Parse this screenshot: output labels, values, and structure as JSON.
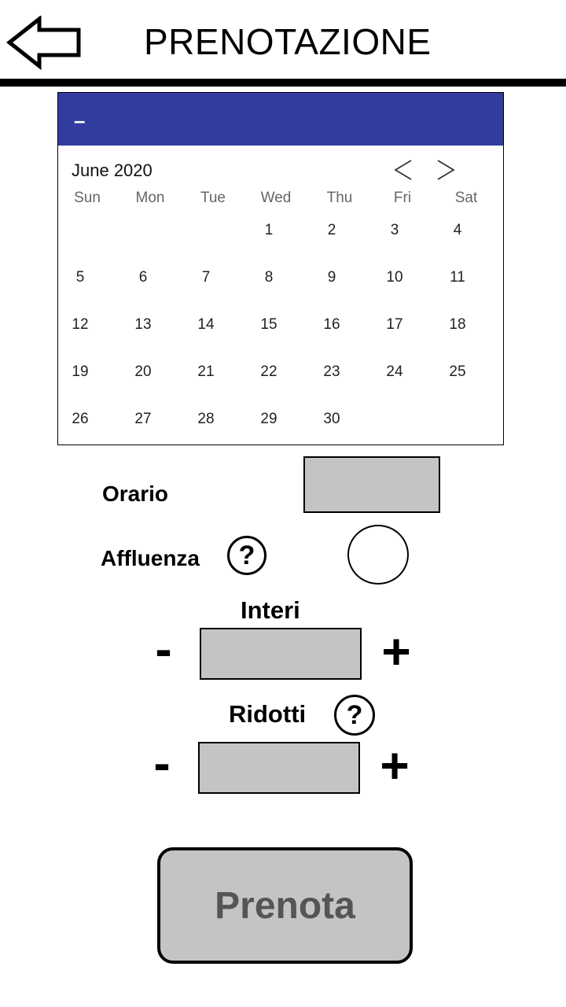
{
  "header": {
    "title": "PRENOTAZIONE",
    "back_icon": "back-arrow-icon"
  },
  "calendar": {
    "header_text": "–",
    "month_label": "June 2020",
    "accent_color": "#323c9f",
    "weekdays": [
      "Sun",
      "Mon",
      "Tue",
      "Wed",
      "Thu",
      "Fri",
      "Sat"
    ],
    "days": [
      "1",
      "2",
      "3",
      "4",
      "5",
      "6",
      "7",
      "8",
      "9",
      "10",
      "11",
      "12",
      "13",
      "14",
      "15",
      "16",
      "17",
      "18",
      "19",
      "20",
      "21",
      "22",
      "23",
      "24",
      "25",
      "26",
      "27",
      "28",
      "29",
      "30"
    ],
    "prev_icon": "chevron-left-icon",
    "next_icon": "chevron-right-icon"
  },
  "form": {
    "orario_label": "Orario",
    "affluenza_label": "Affluenza",
    "help_symbol": "?",
    "interi_label": "Interi",
    "ridotti_label": "Ridotti",
    "minus": "-",
    "plus": "+"
  },
  "actions": {
    "submit_label": "Prenota"
  }
}
